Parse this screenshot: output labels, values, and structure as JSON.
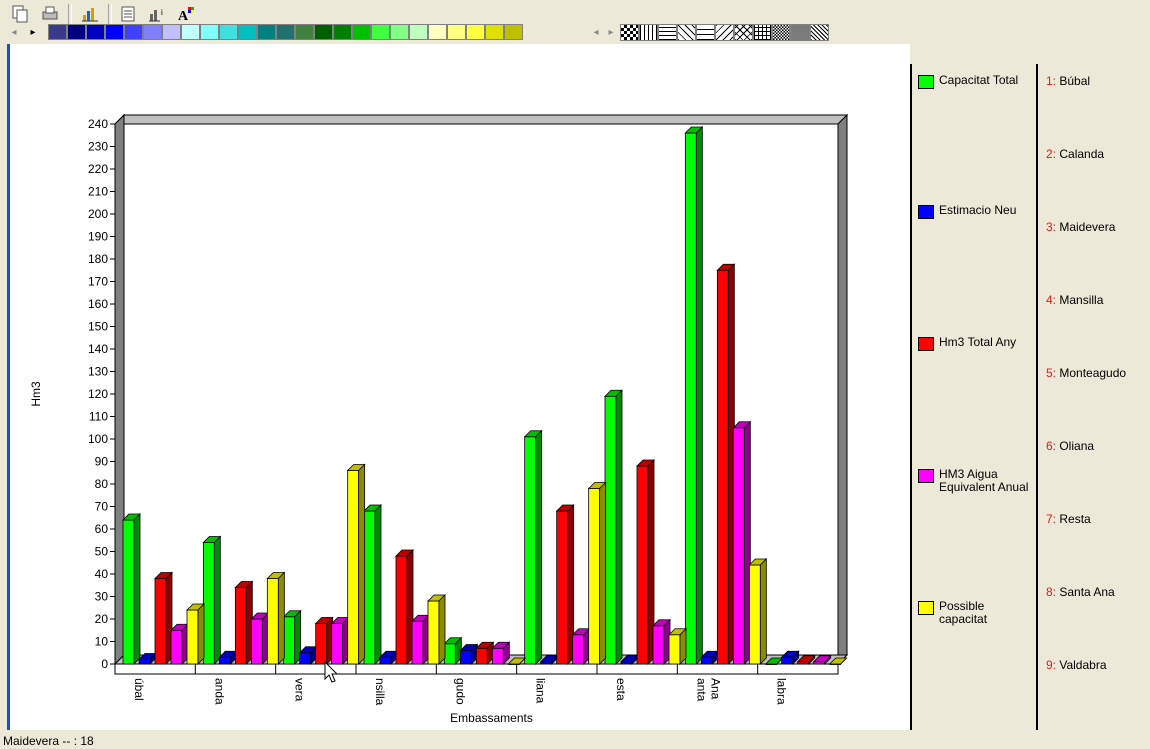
{
  "toolbar": {
    "buttons": [
      {
        "name": "copy-icon",
        "glyph": "❐"
      },
      {
        "name": "print-icon",
        "glyph": "⎙"
      },
      {
        "name": "chart-gallery-icon",
        "glyph": "▁▃▅"
      },
      {
        "name": "data-table-icon",
        "glyph": "▤"
      },
      {
        "name": "legend-icon",
        "glyph": "▇"
      },
      {
        "name": "font-icon",
        "glyph": "A"
      }
    ],
    "palette": [
      "#3a3a8c",
      "#000080",
      "#0000c0",
      "#0000ff",
      "#4040ff",
      "#8080ff",
      "#c0c0ff",
      "#c0ffff",
      "#80ffff",
      "#40e0e0",
      "#00c0c0",
      "#008080",
      "#207070",
      "#408040",
      "#006000",
      "#008000",
      "#00c000",
      "#40ff40",
      "#80ff80",
      "#c0ffc0",
      "#ffffc0",
      "#ffff80",
      "#ffff40",
      "#e0e000",
      "#c0c000"
    ],
    "patterns": [
      "checker",
      "vlines",
      "hlines",
      "diag",
      "brick",
      "zigzag",
      "cross",
      "grid",
      "dense",
      "solid",
      "hatch"
    ]
  },
  "legend": [
    {
      "label": "Capacitat Total",
      "color": "#00ff00"
    },
    {
      "label": "Estimacio Neu",
      "color": "#0000ff"
    },
    {
      "label": "Hm3 Total Any",
      "color": "#ff0000"
    },
    {
      "label": "HM3 Aigua Equivalent Anual",
      "color": "#ff00ff"
    },
    {
      "label": "Possible capacitat",
      "color": "#ffff00"
    }
  ],
  "index": [
    {
      "num": "1:",
      "name": "Búbal"
    },
    {
      "num": "2:",
      "name": "Calanda"
    },
    {
      "num": "3:",
      "name": "Maidevera"
    },
    {
      "num": "4:",
      "name": "Mansilla"
    },
    {
      "num": "5:",
      "name": "Monteagudo"
    },
    {
      "num": "6:",
      "name": "Oliana"
    },
    {
      "num": "7:",
      "name": "Resta"
    },
    {
      "num": "8:",
      "name": "Santa Ana"
    },
    {
      "num": "9:",
      "name": "Valdabra"
    }
  ],
  "status": "Maidevera -- : 18",
  "chart_data": {
    "type": "bar",
    "title": "",
    "xlabel": "Embassaments",
    "ylabel": "Hm3",
    "ylim": [
      0,
      240
    ],
    "ytick_step": 10,
    "categories": [
      "Búbal",
      "Calanda",
      "Maidevera",
      "Mansilla",
      "Monteagudo",
      "Oliana",
      "Resta",
      "Santa Ana",
      "Valdabra"
    ],
    "category_tick_labels": [
      "úbal",
      "anda",
      "vera",
      "nsilla",
      "gudo",
      "liana",
      "esta",
      "anta Ana",
      "labra"
    ],
    "series": [
      {
        "name": "Capacitat Total",
        "color": "#00ff00",
        "values": [
          64,
          54,
          21,
          68,
          9,
          101,
          119,
          236,
          0
        ]
      },
      {
        "name": "Estimacio Neu",
        "color": "#0000ff",
        "values": [
          2,
          3,
          5,
          3,
          6,
          1,
          1,
          3,
          3
        ]
      },
      {
        "name": "Hm3 Total Any",
        "color": "#ff0000",
        "values": [
          38,
          34,
          18,
          48,
          7,
          68,
          88,
          175,
          1
        ]
      },
      {
        "name": "HM3 Aigua Equivalent Anual",
        "color": "#ff00ff",
        "values": [
          15,
          20,
          18,
          19,
          7,
          13,
          17,
          105,
          1
        ]
      },
      {
        "name": "Possible capacitat",
        "color": "#ffff00",
        "values": [
          24,
          38,
          86,
          28,
          0,
          78,
          13,
          44,
          0
        ]
      }
    ],
    "grid": false,
    "legend_position": "right"
  }
}
